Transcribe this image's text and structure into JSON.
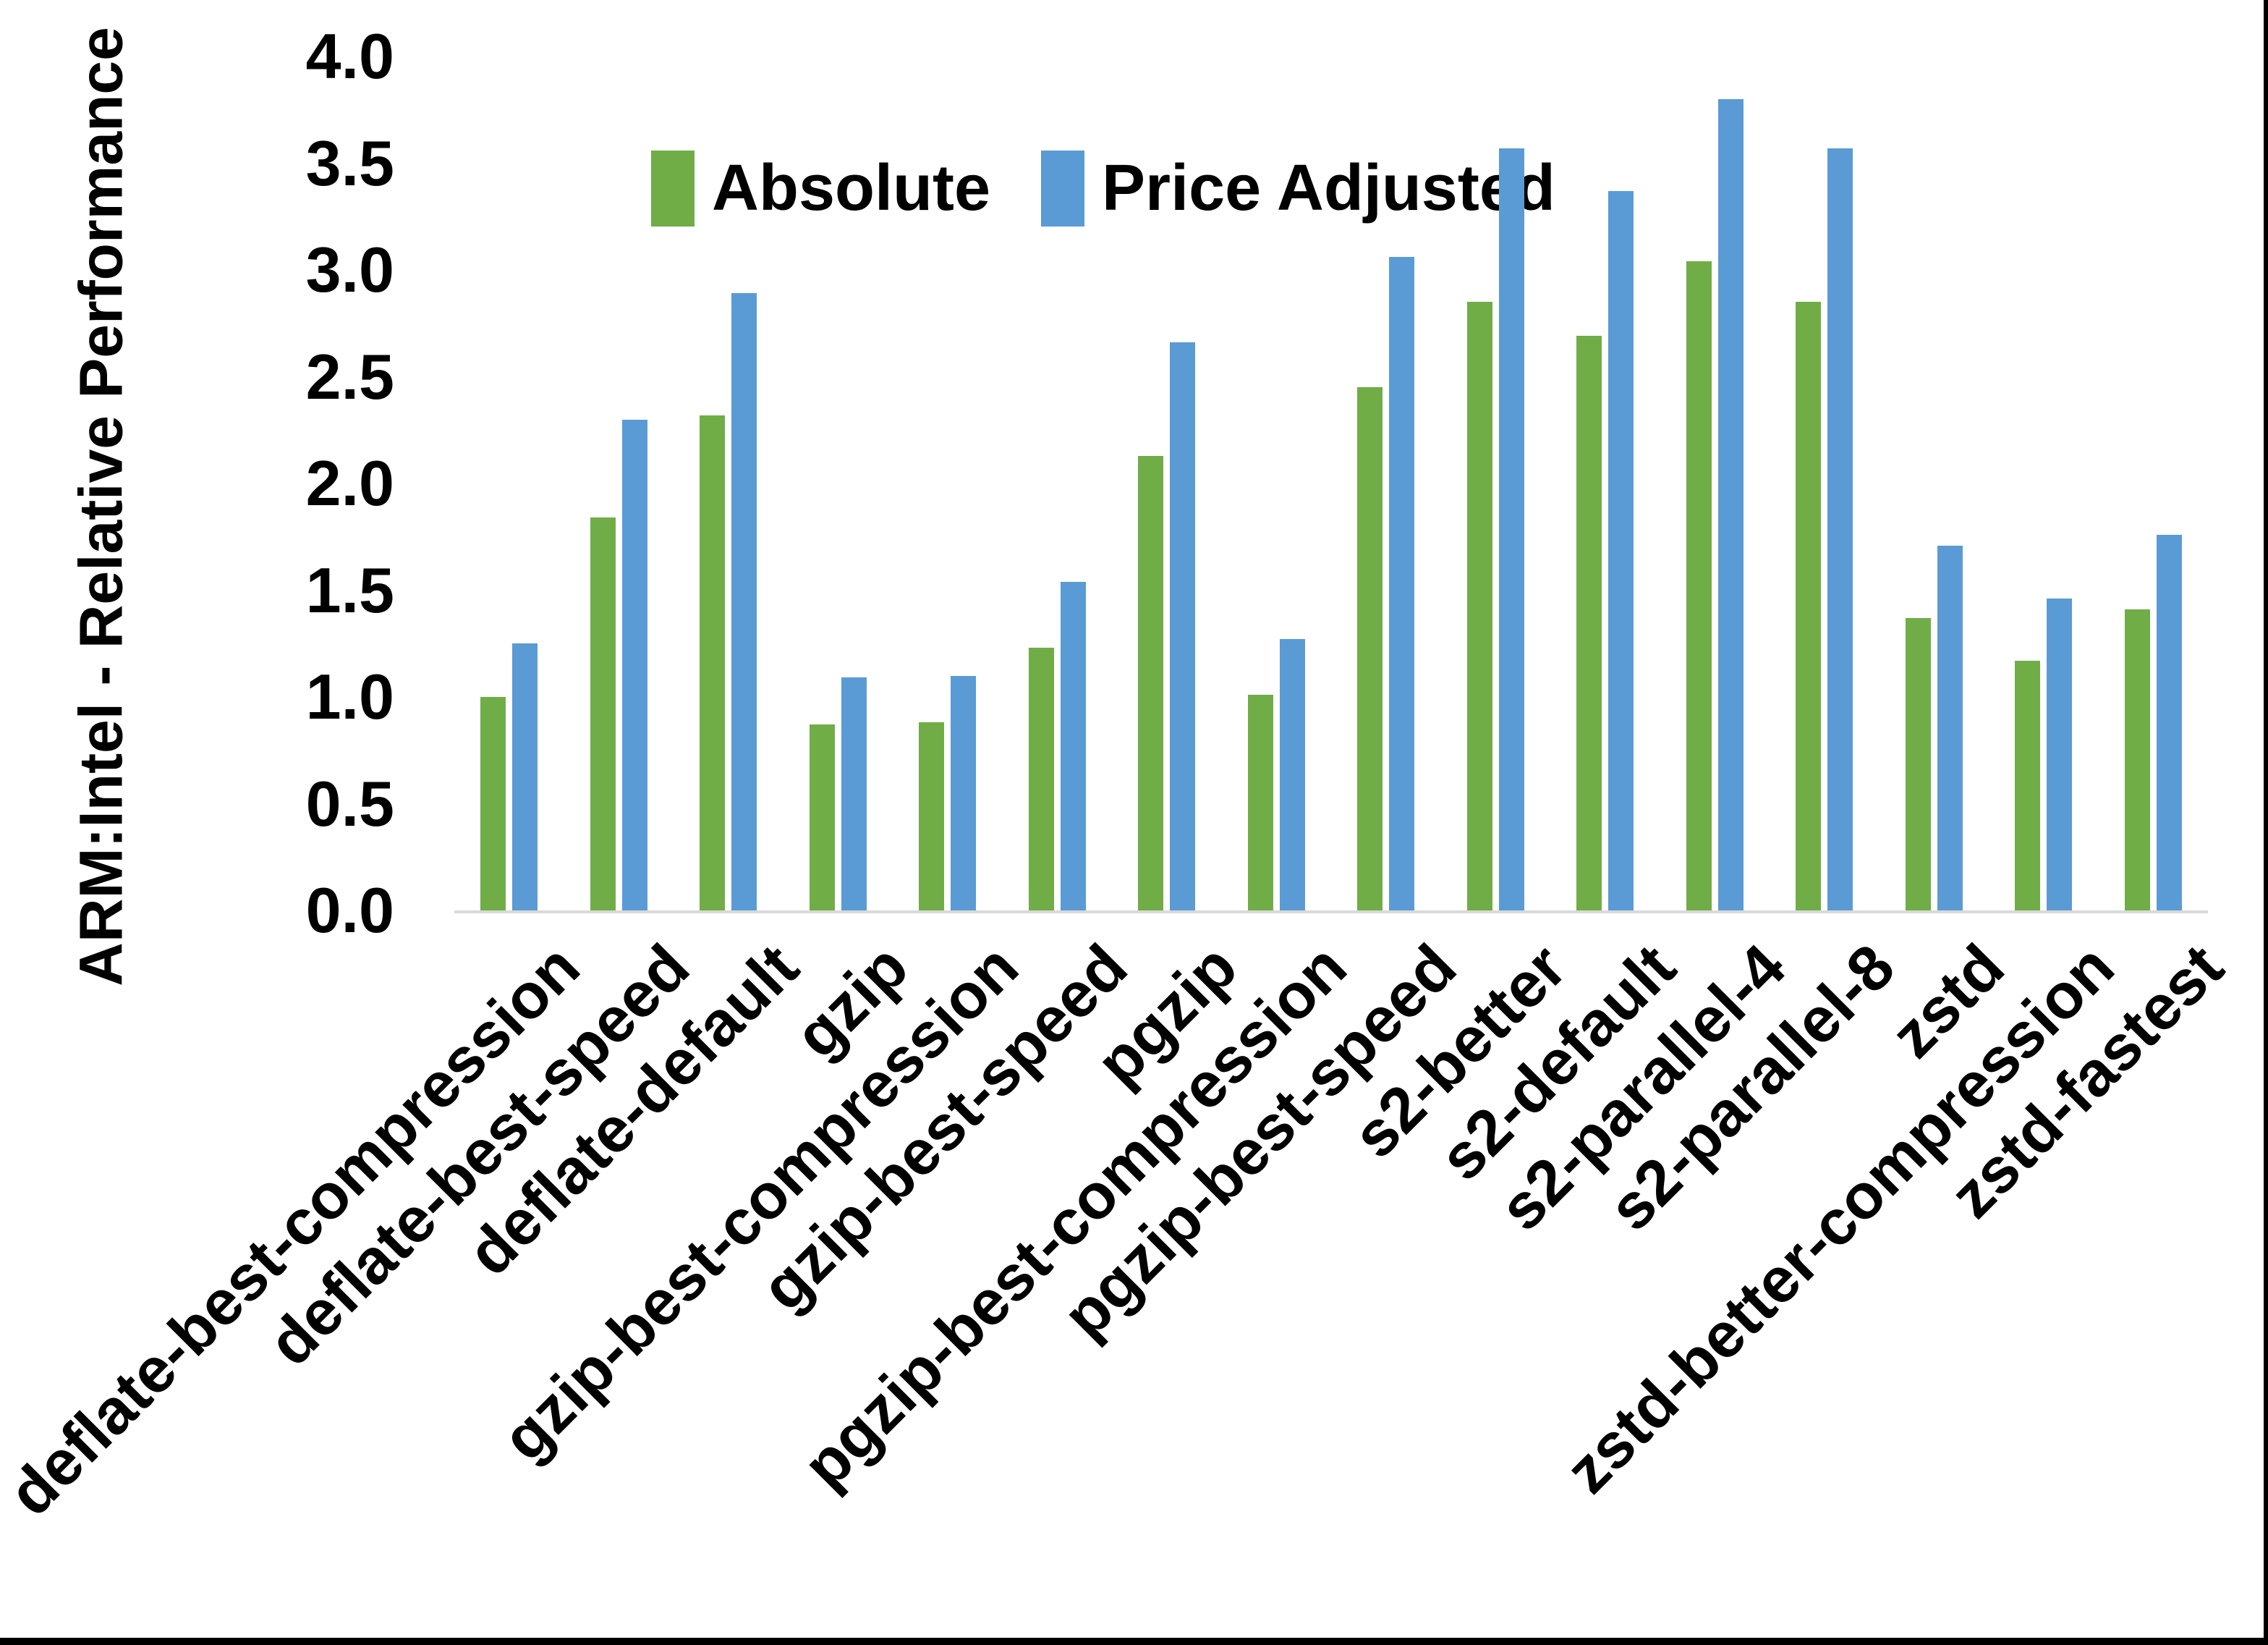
{
  "chart_data": {
    "type": "bar",
    "title": "",
    "xlabel": "",
    "ylabel": "ARM:Intel - Relative Performance",
    "ylim": [
      0,
      4
    ],
    "ytick_step": 0.5,
    "ytick_labels": [
      "4.0",
      "3.5",
      "3.0",
      "2.5",
      "2.0",
      "1.5",
      "1.0",
      "0.5",
      "0.0"
    ],
    "grid": false,
    "legend_position": "top-center",
    "axis_line_color": "#D9D9D9",
    "categories": [
      "deflate-best-compression",
      "deflate-best-speed",
      "deflate-default",
      "gzip",
      "gzip-best-compression",
      "gzip-best-speed",
      "pgzip",
      "pgzip-best-compression",
      "pgzip-best-speed",
      "s2-better",
      "s2-default",
      "s2-parallel-4",
      "s2-parallel-8",
      "zstd",
      "zstd-better-compression",
      "zstd-fastest"
    ],
    "series": [
      {
        "name": "Absolute",
        "color": "#70AD47",
        "values": [
          1.0,
          1.84,
          2.32,
          0.87,
          0.88,
          1.23,
          2.13,
          1.01,
          2.45,
          2.85,
          2.69,
          3.04,
          2.85,
          1.37,
          1.17,
          1.41
        ]
      },
      {
        "name": "Price Adjusted",
        "color": "#5B9BD5",
        "values": [
          1.25,
          2.3,
          2.89,
          1.09,
          1.1,
          1.54,
          2.66,
          1.27,
          3.06,
          3.57,
          3.37,
          3.8,
          3.57,
          1.71,
          1.46,
          1.76
        ]
      }
    ]
  }
}
